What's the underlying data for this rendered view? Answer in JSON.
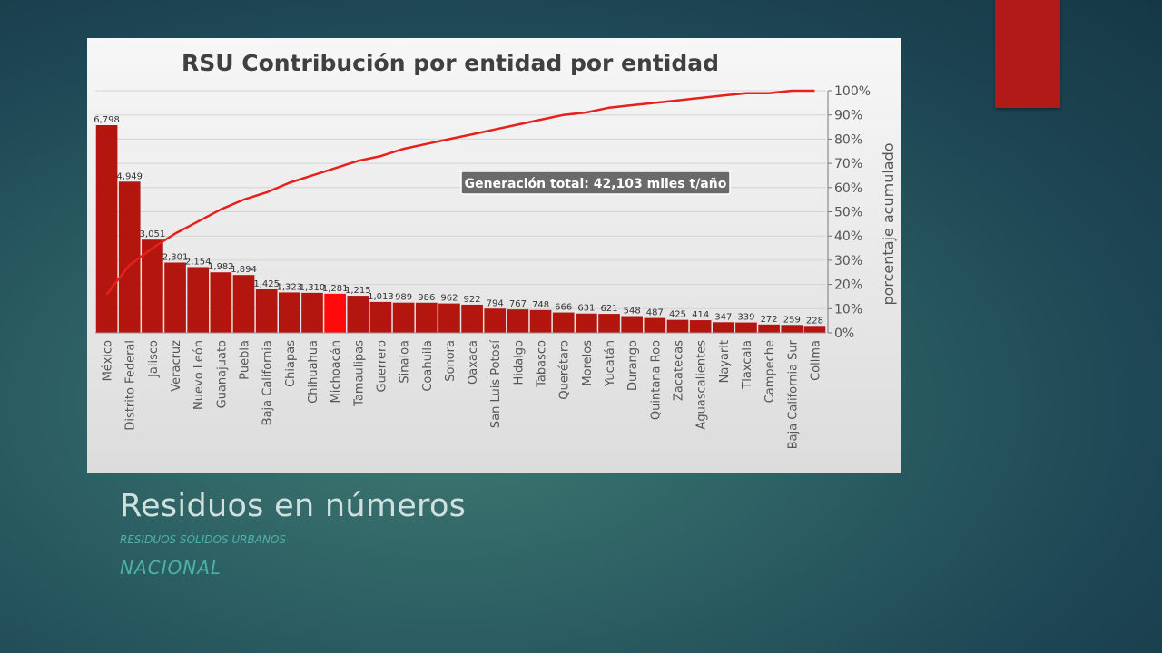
{
  "slide": {
    "title": "Residuos en números",
    "subtitle": "RESIDUOS SÓLIDOS URBANOS",
    "subtitle2": "NACIONAL",
    "accent_color": "#b11a18"
  },
  "chart_data": {
    "type": "bar",
    "title": "RSU Contribución por entidad  por entidad",
    "annotation": "Generación  total: 42,103 miles t/año",
    "y2label": "porcentaje acumulado",
    "y2_ticks": [
      "0%",
      "10%",
      "20%",
      "30%",
      "40%",
      "50%",
      "60%",
      "70%",
      "80%",
      "90%",
      "100%"
    ],
    "ylim": [
      0,
      7000
    ],
    "grid": true,
    "bar_color": "#b3150f",
    "highlight_color": "#ff0a0a",
    "highlight_category": "Michoacán",
    "line_color": "#e8201c",
    "categories": [
      "México",
      "Distrito Federal",
      "Jalisco",
      "Veracruz",
      "Nuevo León",
      "Guanajuato",
      "Puebla",
      "Baja California",
      "Chiapas",
      "Chihuahua",
      "Michoacán",
      "Tamaulipas",
      "Guerrero",
      "Sinaloa",
      "Coahuila",
      "Sonora",
      "Oaxaca",
      "San Luis Potosí",
      "Hidalgo",
      "Tabasco",
      "Querétaro",
      "Morelos",
      "Yucatán",
      "Durango",
      "Quintana Roo",
      "Zacatecas",
      "Aguascalientes",
      "Nayarit",
      "Tlaxcala",
      "Campeche",
      "Baja California Sur",
      "Colima"
    ],
    "values": [
      6798,
      4949,
      3051,
      2301,
      2154,
      1982,
      1894,
      1425,
      1323,
      1310,
      1281,
      1215,
      1013,
      989,
      986,
      962,
      922,
      794,
      767,
      748,
      666,
      631,
      621,
      548,
      487,
      425,
      414,
      347,
      339,
      272,
      259,
      228
    ],
    "value_labels": [
      "6,798",
      "4,949",
      "3,051",
      "2,301",
      "2,154",
      "1,982",
      "1,894",
      "1,425",
      "1,323",
      "1,310",
      "1,281",
      "1,215",
      "1,013",
      "989",
      "986",
      "962",
      "922",
      "794",
      "767",
      "748",
      "666",
      "631",
      "621",
      "548",
      "487",
      "425",
      "414",
      "347",
      "339",
      "272",
      "259",
      "228"
    ],
    "cumulative_percent": [
      16,
      28,
      35,
      41,
      46,
      51,
      55,
      58,
      62,
      65,
      68,
      71,
      73,
      76,
      78,
      80,
      82,
      84,
      86,
      88,
      90,
      91,
      93,
      94,
      95,
      96,
      97,
      98,
      99,
      99,
      100,
      100
    ]
  }
}
